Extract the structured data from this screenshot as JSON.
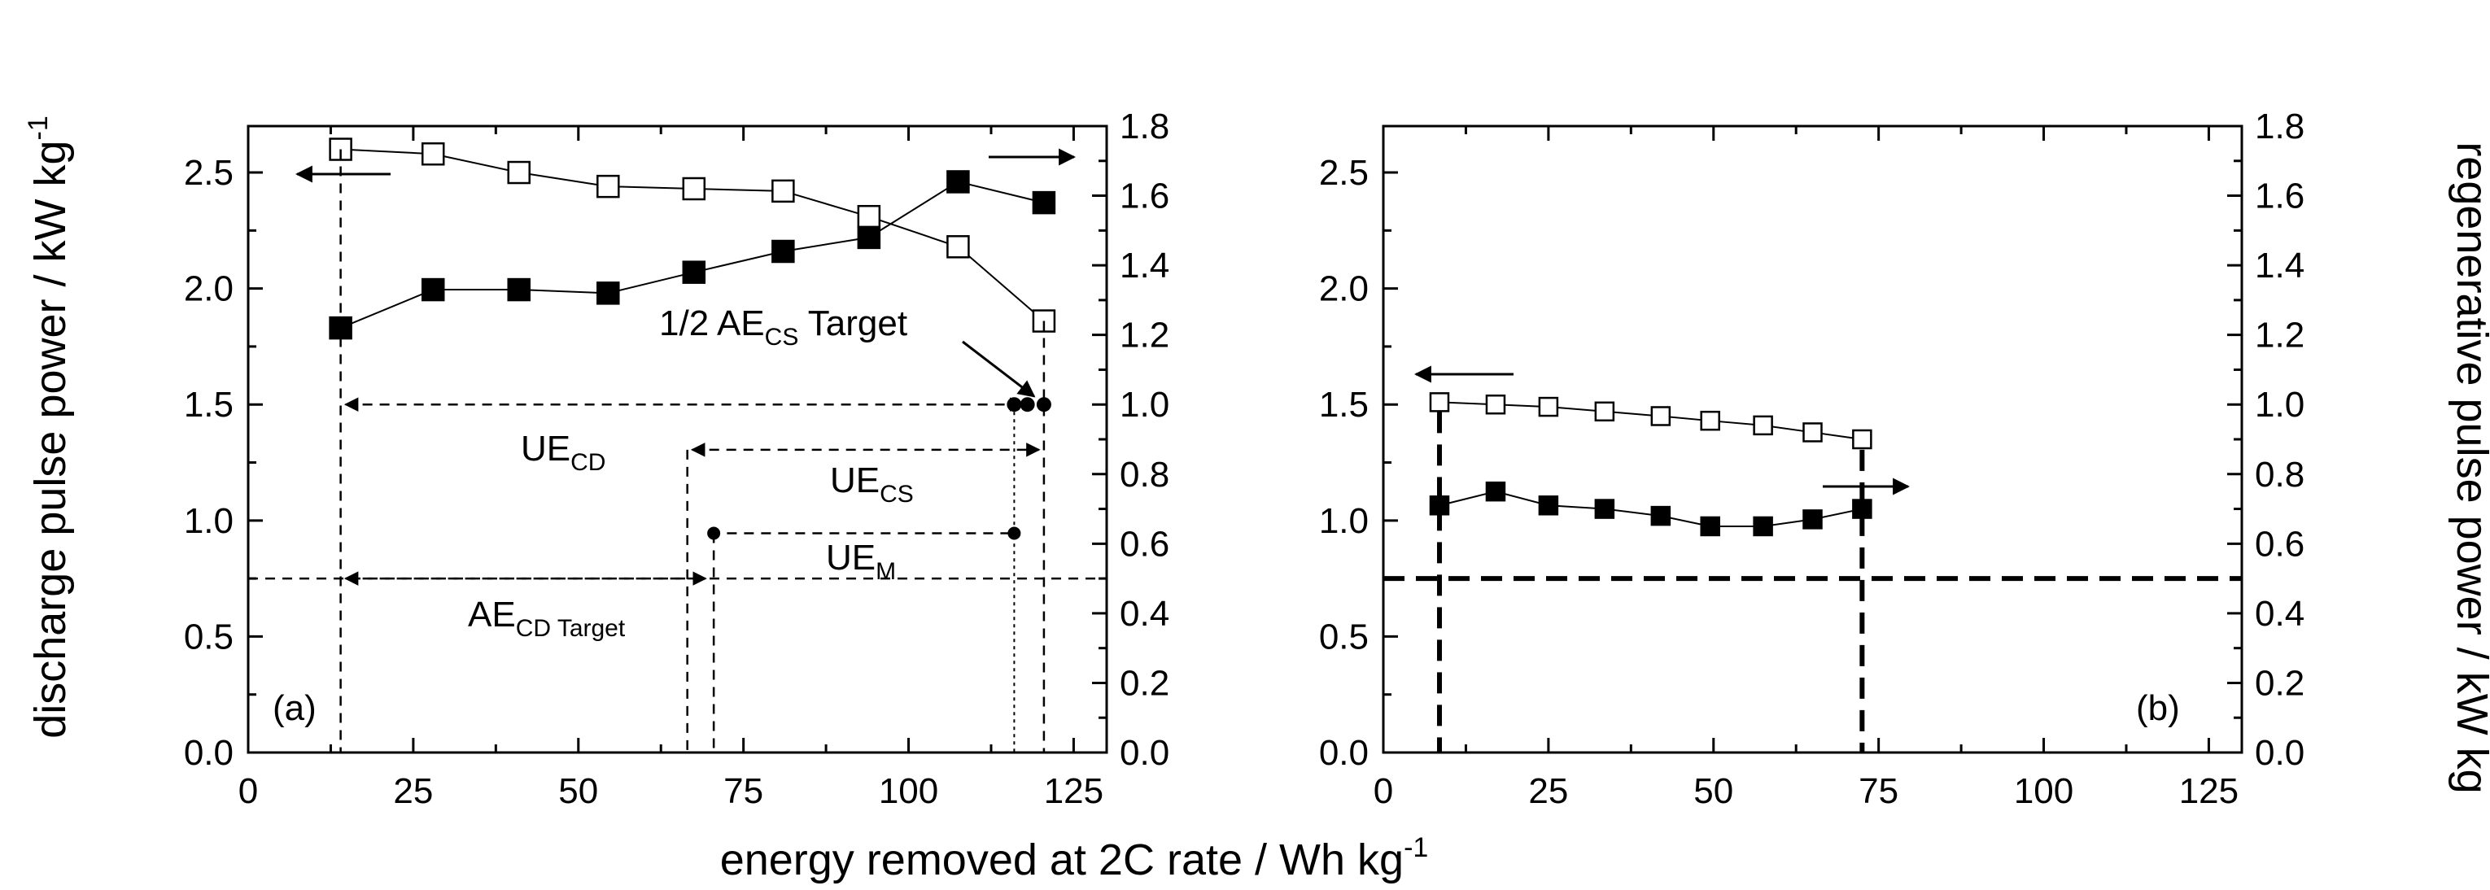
{
  "figure": {
    "xlabel_main": "energy removed at 2C rate / Wh kg",
    "xlabel_sup": "-1",
    "ylabel_left_main": "discharge pulse power / kW kg",
    "ylabel_left_sup": "-1",
    "ylabel_right": "regenerative pulse power / kW kg"
  },
  "chart_data": [
    {
      "panel": "a",
      "type": "scatter",
      "panel_label": "(a)",
      "xlim": [
        0,
        130
      ],
      "xticks": [
        0,
        25,
        50,
        75,
        100,
        125
      ],
      "ylim_left": [
        0,
        2.7
      ],
      "yticks_left": [
        "0.0",
        "0.5",
        "1.0",
        "1.5",
        "2.0",
        "2.5"
      ],
      "ylim_right": [
        0,
        1.8
      ],
      "yticks_right": [
        "0.0",
        "0.2",
        "0.4",
        "0.6",
        "0.8",
        "1.0",
        "1.2",
        "1.4",
        "1.6",
        "1.8"
      ],
      "series": [
        {
          "marker": "open-square",
          "axis": "left",
          "x": [
            14,
            28,
            41,
            54.5,
            67.5,
            81,
            94,
            107.5,
            120.5
          ],
          "y": [
            2.6,
            2.58,
            2.5,
            2.44,
            2.43,
            2.42,
            2.31,
            2.18,
            1.86
          ]
        },
        {
          "marker": "filled-square",
          "axis": "right",
          "x": [
            14,
            28,
            41,
            54.5,
            67.5,
            81,
            94,
            107.5,
            120.5
          ],
          "y": [
            1.22,
            1.33,
            1.33,
            1.32,
            1.38,
            1.44,
            1.48,
            1.64,
            1.58
          ]
        }
      ],
      "annotations": {
        "half_ae_cs_main": "1/2 AE",
        "half_ae_cs_sub": "CS",
        "half_ae_cs_tail": " Target",
        "ue_cd_main": "UE",
        "ue_cd_sub": "CD",
        "ue_cs_main": "UE",
        "ue_cs_sub": "CS",
        "ue_m_main": "UE",
        "ue_m_sub": "M",
        "ae_cd_main": "AE",
        "ae_cd_sub": "CD Target"
      }
    },
    {
      "panel": "b",
      "type": "scatter",
      "panel_label": "(b)",
      "xlim": [
        0,
        130
      ],
      "xticks": [
        0,
        25,
        50,
        75,
        100,
        125
      ],
      "ylim_left": [
        0,
        2.7
      ],
      "yticks_left": [
        "0.0",
        "0.5",
        "1.0",
        "1.5",
        "2.0",
        "2.5"
      ],
      "ylim_right": [
        0,
        1.8
      ],
      "yticks_right": [
        "0.0",
        "0.2",
        "0.4",
        "0.6",
        "0.8",
        "1.0",
        "1.2",
        "1.4",
        "1.6",
        "1.8"
      ],
      "series": [
        {
          "marker": "open-square",
          "axis": "left",
          "x": [
            8.5,
            17,
            25,
            33.5,
            42,
            49.5,
            57.5,
            65,
            72.5
          ],
          "y": [
            1.51,
            1.5,
            1.49,
            1.47,
            1.45,
            1.43,
            1.41,
            1.38,
            1.35
          ]
        },
        {
          "marker": "filled-square",
          "axis": "right",
          "x": [
            8.5,
            17,
            25,
            33.5,
            42,
            49.5,
            57.5,
            65,
            72.5
          ],
          "y": [
            0.71,
            0.75,
            0.71,
            0.7,
            0.68,
            0.65,
            0.65,
            0.67,
            0.7
          ]
        }
      ]
    }
  ]
}
